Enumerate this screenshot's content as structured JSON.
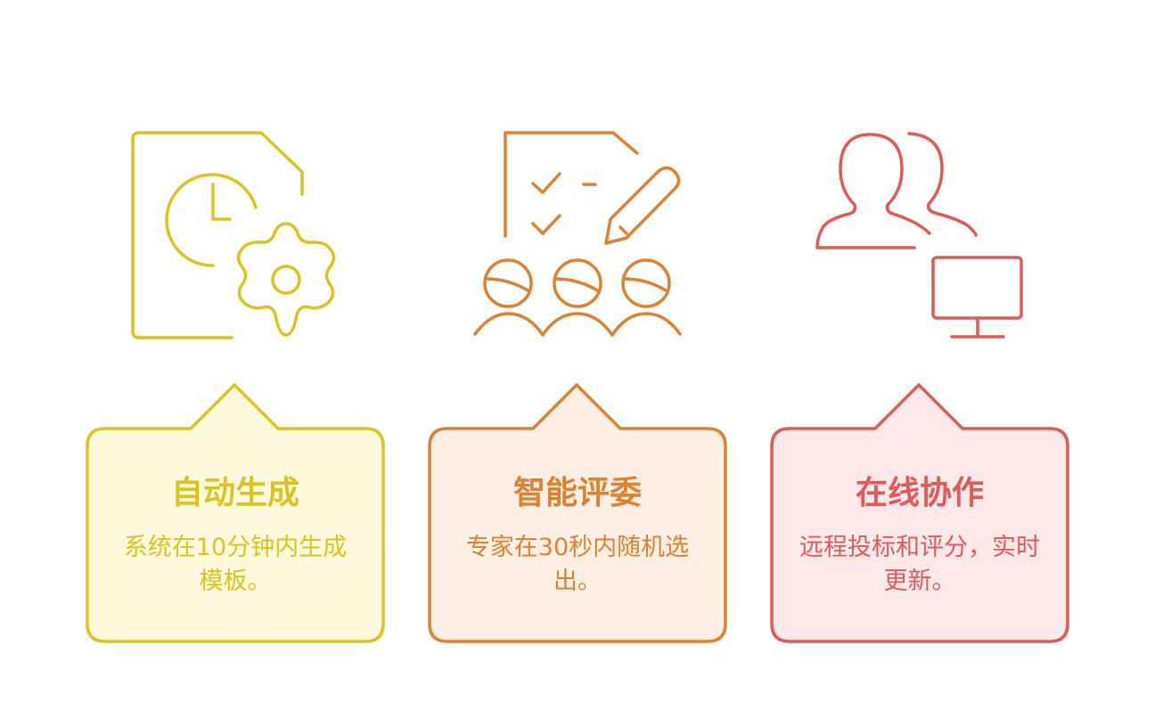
{
  "colors": {
    "yellow": "#dcc41e",
    "yellow_fill": "#fef9dc",
    "orange": "#dd8231",
    "orange_fill": "#feefe4",
    "red": "#e05a58",
    "red_fill": "#fee9ea"
  },
  "cards": [
    {
      "icon": "document-clock-gear-icon",
      "title": "自动生成",
      "desc": "系统在10分钟内生成模板。"
    },
    {
      "icon": "checklist-pencil-people-icon",
      "title": "智能评委",
      "desc": "专家在30秒内随机选出。"
    },
    {
      "icon": "users-monitor-icon",
      "title": "在线协作",
      "desc": "远程投标和评分，实时更新。"
    }
  ]
}
